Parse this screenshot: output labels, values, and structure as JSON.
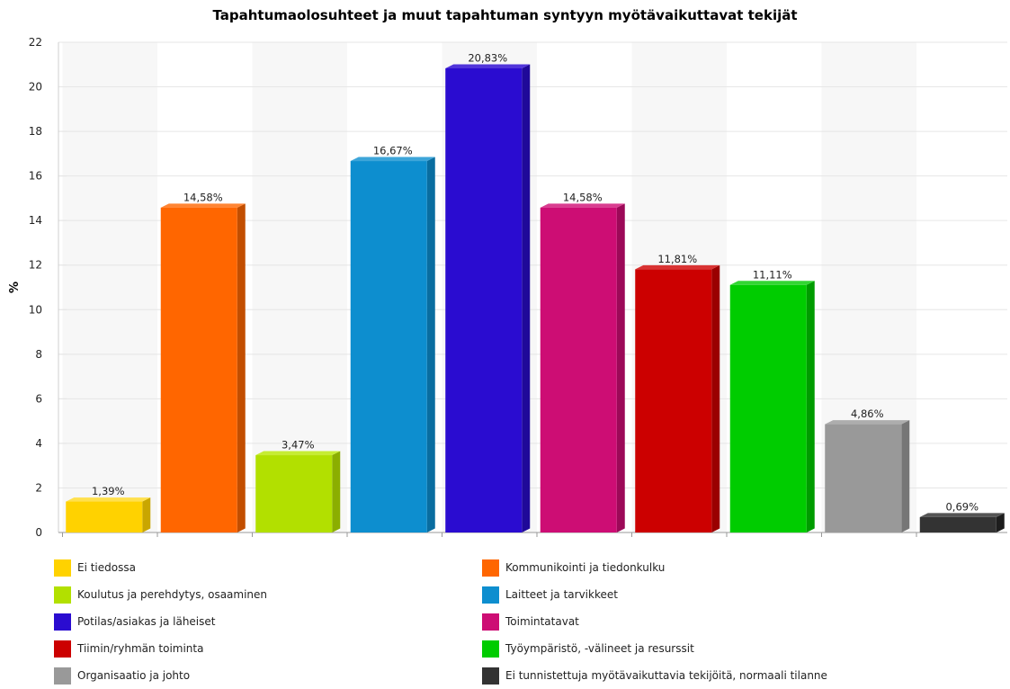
{
  "chart_data": {
    "type": "bar",
    "title": "Tapahtumaolosuhteet ja muut tapahtuman syntyyn myötävaikuttavat tekijät",
    "ylabel": "%",
    "xlabel": "",
    "ylim": [
      0,
      22
    ],
    "yticks": [
      "0",
      "2",
      "4",
      "6",
      "8",
      "10",
      "12",
      "14",
      "16",
      "18",
      "20",
      "22"
    ],
    "grid": true,
    "legend_position": "bottom",
    "categories": [
      "Ei tiedossa",
      "Kommunikointi ja tiedonkulku",
      "Koulutus ja perehdytys, osaaminen",
      "Laitteet ja tarvikkeet",
      "Potilas/asiakas ja läheiset",
      "Toimintatavat",
      "Tiimin/ryhmän toiminta",
      "Työympäristö, -välineet ja resurssit",
      "Organisaatio ja johto",
      "Ei tunnistettuja myötävaikuttavia tekijöitä, normaali tilanne"
    ],
    "values": [
      1.39,
      14.58,
      3.47,
      16.67,
      20.83,
      14.58,
      11.81,
      11.11,
      4.86,
      0.69
    ],
    "data_labels": [
      "1,39%",
      "14,58%",
      "3,47%",
      "16,67%",
      "20,83%",
      "14,58%",
      "11,81%",
      "11,11%",
      "4,86%",
      "0,69%"
    ],
    "colors": [
      "#ffd200",
      "#ff6600",
      "#b2e000",
      "#0d8ecf",
      "#2a0cd0",
      "#cd0d74",
      "#cc0000",
      "#00cc00",
      "#999999",
      "#333333"
    ],
    "side_colors": [
      "#c9a600",
      "#c24e00",
      "#8bae00",
      "#096da0",
      "#1f0999",
      "#9c0958",
      "#9a0000",
      "#009c00",
      "#767676",
      "#1d1d1d"
    ],
    "top_colors": [
      "#ffe04d",
      "#ff8533",
      "#c6ec33",
      "#3da5d9",
      "#5135da",
      "#d93d90",
      "#d93333",
      "#33d633",
      "#adadad",
      "#555555"
    ]
  }
}
